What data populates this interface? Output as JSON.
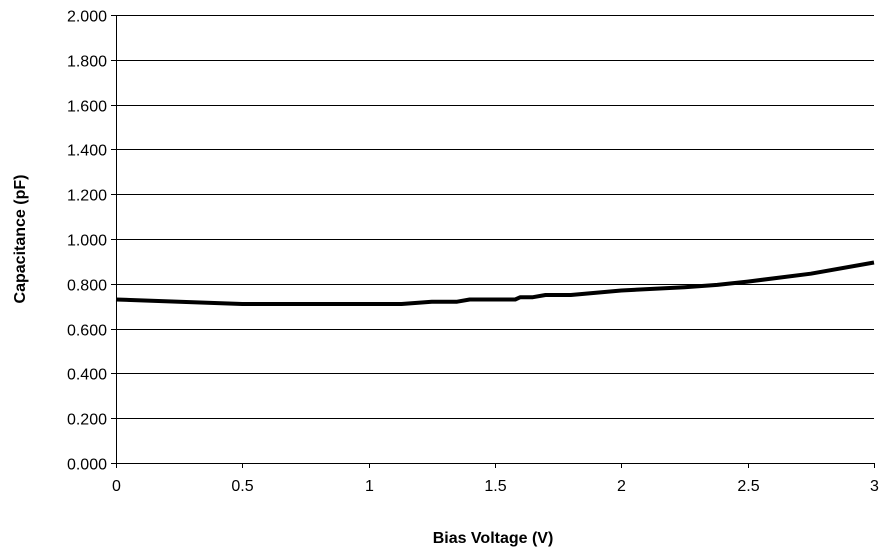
{
  "chart_data": {
    "type": "line",
    "title": "",
    "xlabel": "Bias Voltage (V)",
    "ylabel": "Capacitance (pF)",
    "xlim": [
      0,
      3
    ],
    "ylim": [
      0,
      2
    ],
    "x_ticks": [
      0,
      0.5,
      1,
      1.5,
      2,
      2.5,
      3
    ],
    "x_tick_labels": [
      "0",
      "0.5",
      "1",
      "1.5",
      "2",
      "2.5",
      "3"
    ],
    "y_ticks": [
      0,
      0.2,
      0.4,
      0.6,
      0.8,
      1.0,
      1.2,
      1.4,
      1.6,
      1.8,
      2.0
    ],
    "y_tick_labels": [
      "0.000",
      "0.200",
      "0.400",
      "0.600",
      "0.800",
      "1.000",
      "1.200",
      "1.400",
      "1.600",
      "1.800",
      "2.000"
    ],
    "grid": {
      "horizontal": true,
      "vertical": false
    },
    "legend": "none",
    "line_color": "#000000",
    "series": [
      {
        "x": [
          0,
          0.25,
          0.5,
          0.75,
          1.0,
          1.13,
          1.25,
          1.35,
          1.4,
          1.5,
          1.58,
          1.6,
          1.65,
          1.7,
          1.8,
          2.0,
          2.25,
          2.38,
          2.5,
          2.75,
          3.0
        ],
        "values": [
          0.73,
          0.72,
          0.71,
          0.71,
          0.71,
          0.71,
          0.72,
          0.72,
          0.73,
          0.73,
          0.73,
          0.74,
          0.74,
          0.75,
          0.75,
          0.77,
          0.785,
          0.795,
          0.81,
          0.845,
          0.895
        ]
      }
    ]
  }
}
